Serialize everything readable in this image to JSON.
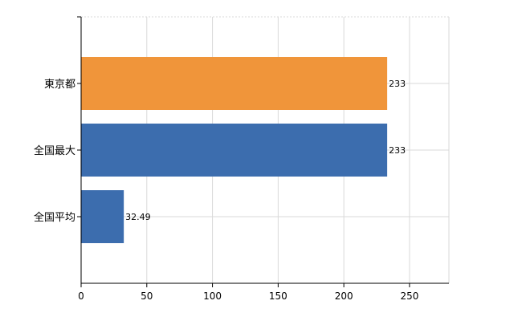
{
  "chart_data": {
    "type": "bar",
    "orientation": "horizontal",
    "categories": [
      "東京都",
      "全国最大",
      "全国平均"
    ],
    "values": [
      233,
      233,
      32.49
    ],
    "data_labels": [
      "233",
      "233",
      "32.49"
    ],
    "bar_colors": [
      "#F0953A",
      "#3C6DAE",
      "#3C6DAE"
    ],
    "xlim": [
      0,
      280
    ],
    "xticks": [
      0,
      50,
      100,
      150,
      200,
      250
    ],
    "grid": true,
    "title": "",
    "xlabel": "",
    "ylabel": ""
  }
}
